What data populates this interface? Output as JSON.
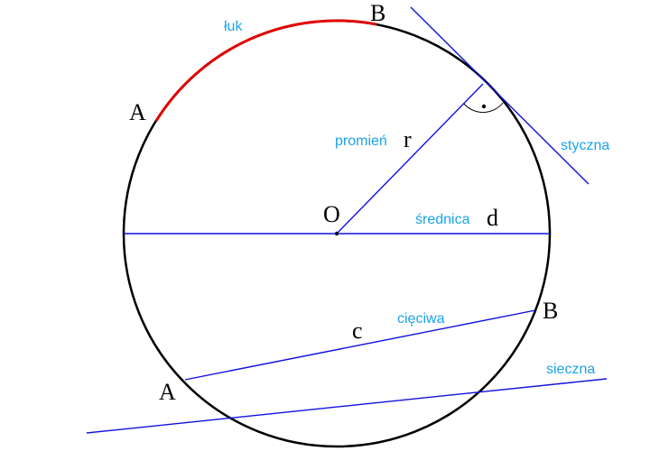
{
  "colors": {
    "circle": "#000000",
    "lines": "#1010e0",
    "arc": "#e00000",
    "term_labels": "#1ba3e8",
    "letters": "#000000"
  },
  "labels": {
    "arc_term": "łuk",
    "radius_term": "promień",
    "tangent_term": "styczna",
    "diameter_term": "średnica",
    "chord_term": "cięciwa",
    "secant_term": "sieczna",
    "arc_point_a": "A",
    "arc_point_b": "B",
    "radius_letter": "r",
    "center_letter": "O",
    "diameter_letter": "d",
    "chord_letter": "c",
    "chord_point_a": "A",
    "chord_point_b": "B"
  }
}
